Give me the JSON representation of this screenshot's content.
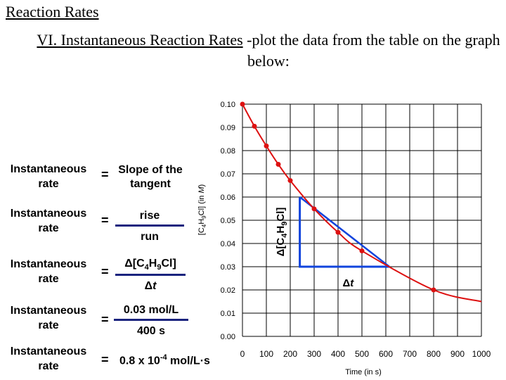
{
  "title": "Reaction Rates",
  "subtitle": {
    "underlined": "VI. Instantaneous Reaction Rates",
    "rest": " -plot the data from the table on the graph below:"
  },
  "equations": [
    {
      "lhs": "Instantaneous rate",
      "sign": "=",
      "text": "Slope of the tangent"
    },
    {
      "lhs": "Instantaneous rate",
      "sign": "=",
      "numerator": "rise",
      "denominator": "run"
    },
    {
      "lhs": "Instantaneous rate",
      "sign": "=",
      "numerator": "Δ[C4H9Cl]",
      "denominator": "Δt"
    },
    {
      "lhs": "Instantaneous rate",
      "sign": "=",
      "numerator": "0.03 mol/L",
      "denominator": "400 s"
    },
    {
      "lhs": "Instantaneous rate",
      "sign": "=",
      "value": "0.8 x 10-4 mol/L·s"
    }
  ],
  "colors": {
    "curve": "#dd1111",
    "tangent": "#1144dd",
    "grid": "#000000",
    "text_accent": "#1a237e"
  },
  "chart_data": {
    "type": "line",
    "title": "",
    "xlabel": "Time (in s)",
    "ylabel": "[C4H9Cl] (in M)",
    "xlim": [
      0,
      1000
    ],
    "ylim": [
      0,
      0.1
    ],
    "xticks": [
      0,
      100,
      200,
      300,
      400,
      500,
      600,
      700,
      800,
      900,
      1000
    ],
    "xtick_labels": [
      "0",
      "100",
      "200",
      "300",
      "400",
      "500",
      "600",
      "700",
      "800",
      "900",
      "1000"
    ],
    "yticks": [
      0,
      0.01,
      0.02,
      0.03,
      0.04,
      0.05,
      0.06,
      0.07,
      0.08,
      0.09,
      0.1
    ],
    "ytick_labels": [
      "0.00",
      "0.01",
      "0.02",
      "0.03",
      "0.04",
      "0.05",
      "0.06",
      "0.07",
      "0.08",
      "0.09",
      "0.10"
    ],
    "grid": true,
    "series": [
      {
        "name": "[C4H9Cl]",
        "x": [
          0,
          50,
          100,
          150,
          200,
          300,
          400,
          500,
          800
        ],
        "y": [
          0.1,
          0.0905,
          0.082,
          0.0741,
          0.0671,
          0.0549,
          0.0448,
          0.0368,
          0.02
        ]
      }
    ],
    "curve_extent_x": [
      1000
    ],
    "curve_extent_y": [
      0.015
    ],
    "tangent": {
      "x": [
        240,
        615
      ],
      "y": [
        0.06,
        0.03
      ]
    },
    "triangle": {
      "x": [
        240,
        240,
        615
      ],
      "y": [
        0.06,
        0.03,
        0.03
      ]
    },
    "annotations": {
      "rise_label": "Δ[C4H9Cl]",
      "run_label": "Δt"
    }
  }
}
